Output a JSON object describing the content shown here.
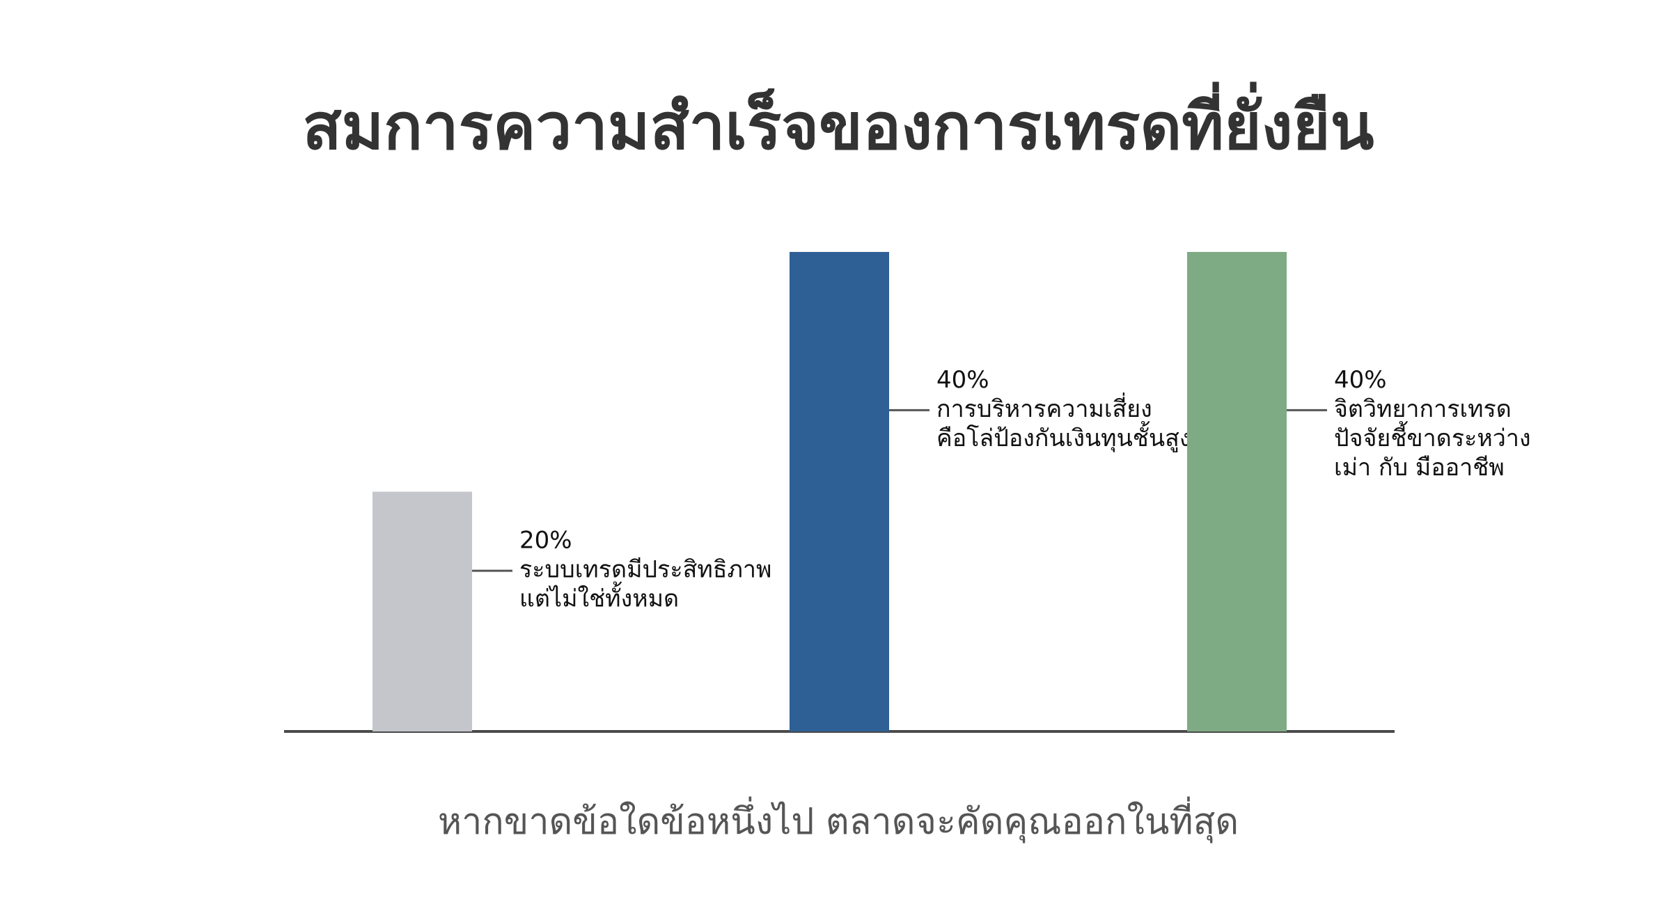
{
  "chart_data": {
    "type": "bar",
    "title": "สมการความสำเร็จของการเทรดที่ยั่งยืน",
    "caption": "หากขาดข้อใดข้อหนึ่งไป ตลาดจะคัดคุณออกในที่สุด",
    "values": [
      20,
      40,
      40
    ],
    "value_labels": [
      "20%",
      "40%",
      "40%"
    ],
    "labels": [
      [
        "ระบบเทรดมีประสิทธิภาพ",
        "แต่ไม่ใช่ทั้งหมด"
      ],
      [
        "การบริหารความเสี่ยง",
        "คือโล่ป้องกันเงินทุนชั้นสูง"
      ],
      [
        "จิตวิทยาการเทรด",
        "ปัจจัยชี้ขาดระหว่าง",
        "เม่า กับ มืออาชีพ"
      ]
    ],
    "colors": [
      "#c4c6cc",
      "#2e6096",
      "#7eab84"
    ]
  }
}
